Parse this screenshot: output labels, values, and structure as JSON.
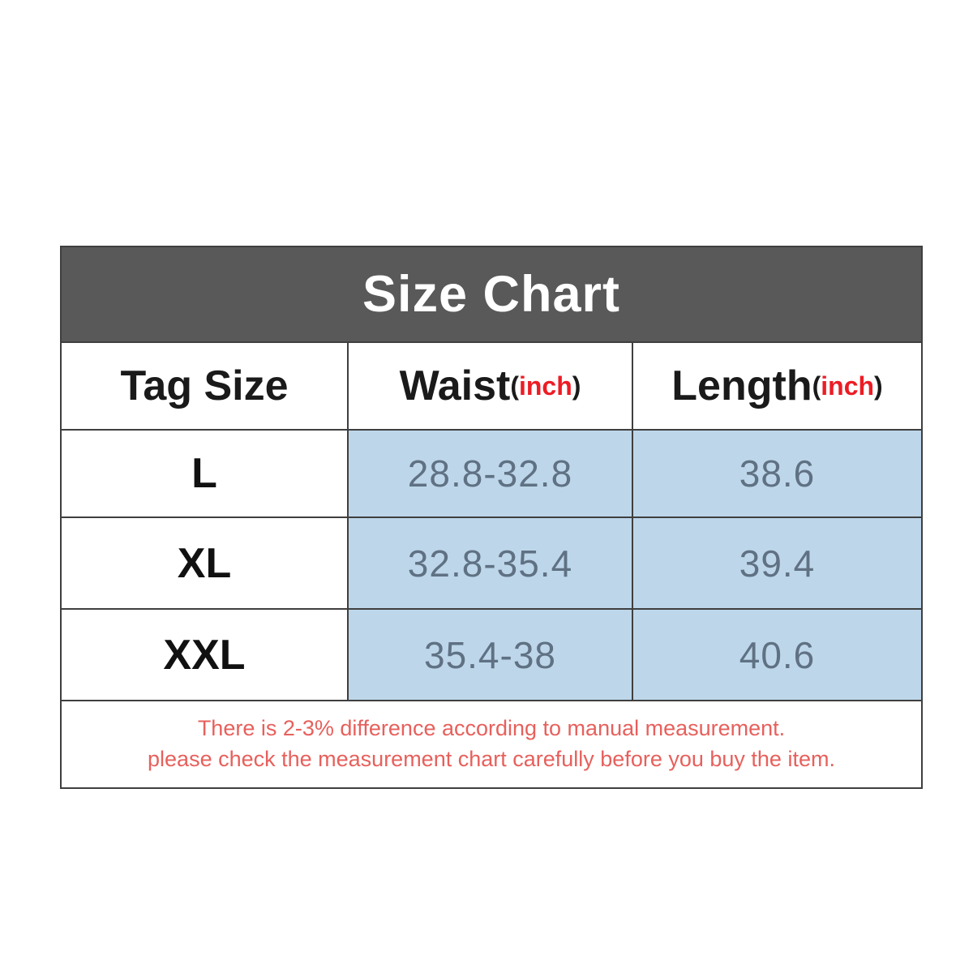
{
  "title": "Size Chart",
  "columns": [
    {
      "label": "Tag Size",
      "paren_open": "",
      "unit": "",
      "paren_close": ""
    },
    {
      "label": "Waist",
      "paren_open": "(",
      "unit": "inch",
      "paren_close": ")"
    },
    {
      "label": "Length",
      "paren_open": "(",
      "unit": "inch",
      "paren_close": ")"
    }
  ],
  "rows": [
    {
      "size": "L",
      "waist": "28.8-32.8",
      "length": "38.6"
    },
    {
      "size": "XL",
      "waist": "32.8-35.4",
      "length": "39.4"
    },
    {
      "size": "XXL",
      "waist": "35.4-38",
      "length": "40.6"
    }
  ],
  "note": {
    "line1": "There is 2-3% difference according to manual measurement.",
    "line2": "please check the measurement chart carefully before you buy the item."
  },
  "colors": {
    "title_bar_bg": "#595959",
    "title_text": "#ffffff",
    "value_cell_bg": "#bdd6ea",
    "value_text": "#5f7183",
    "unit_red": "#ed1c24",
    "note_red": "#e7605c",
    "border": "#3f3f3f"
  },
  "chart_data": {
    "type": "table",
    "title": "Size Chart",
    "columns": [
      "Tag Size",
      "Waist(inch)",
      "Length(inch)"
    ],
    "rows": [
      [
        "L",
        "28.8-32.8",
        "38.6"
      ],
      [
        "XL",
        "32.8-35.4",
        "39.4"
      ],
      [
        "XXL",
        "35.4-38",
        "40.6"
      ]
    ],
    "units": "inch",
    "footnote": "There is 2-3% difference according to manual measurement. please check the measurement chart carefully before you buy the item."
  }
}
